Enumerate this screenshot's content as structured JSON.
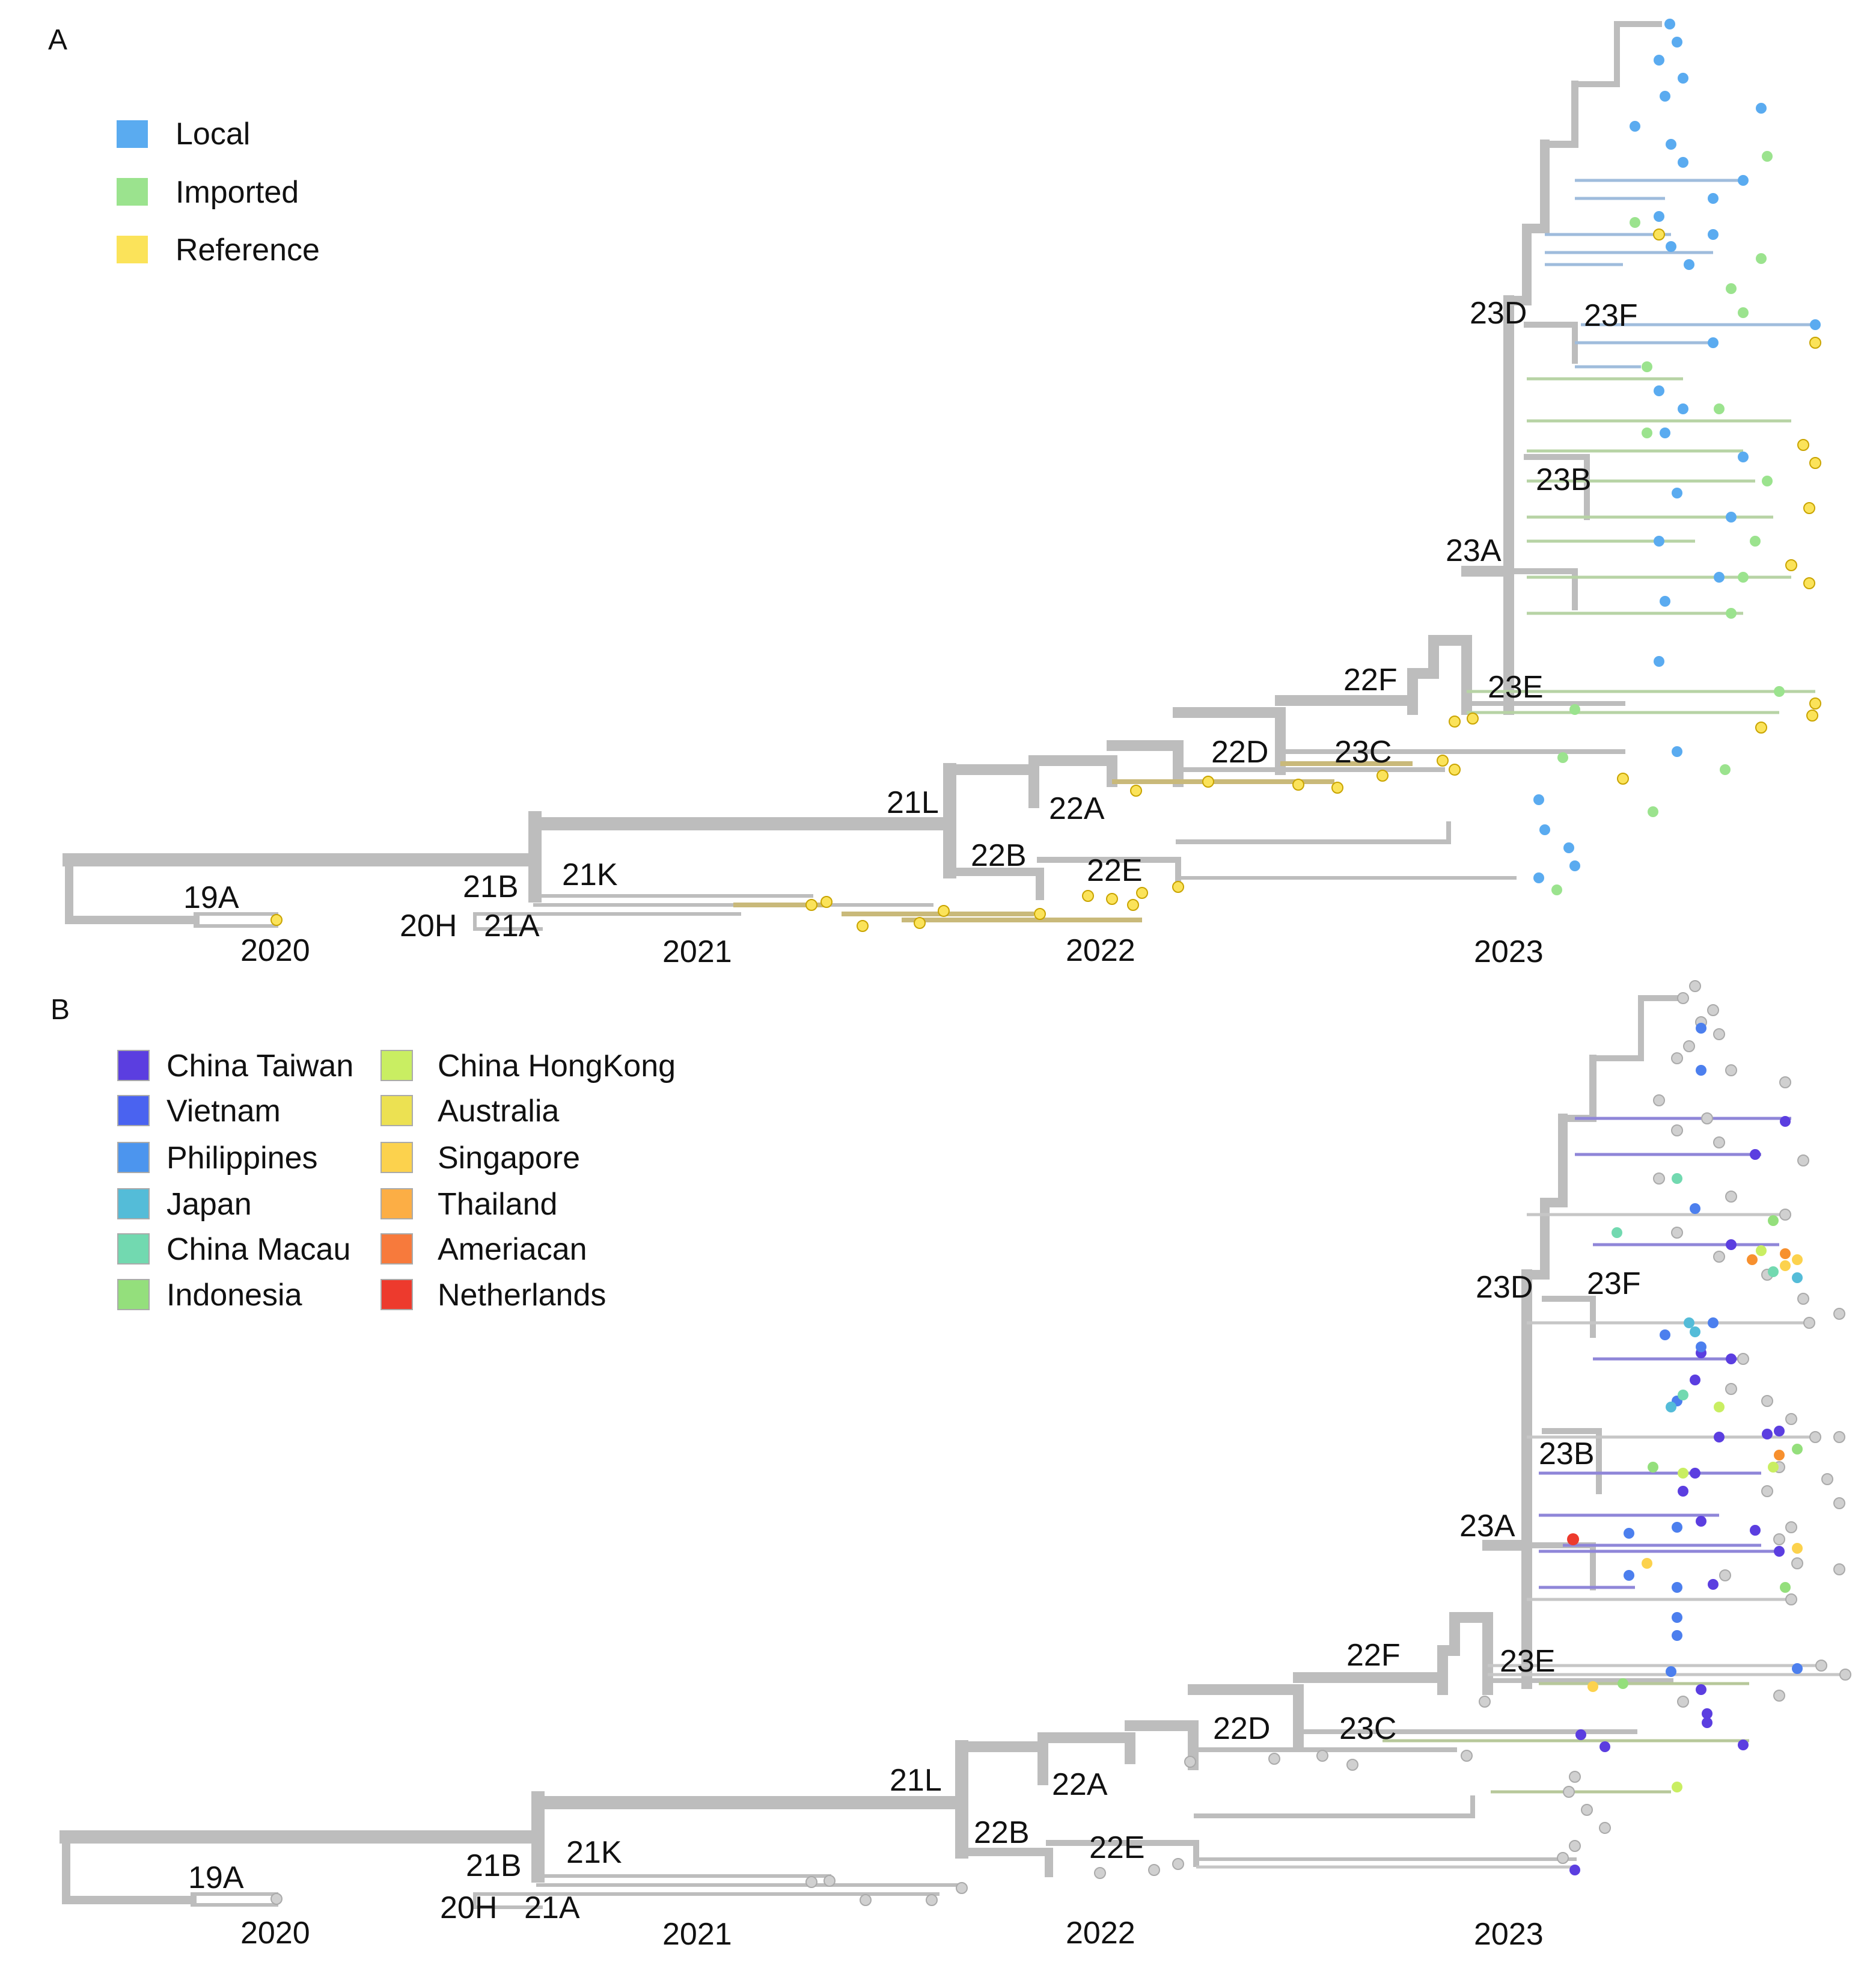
{
  "panel_a": {
    "letter": "A",
    "legend": [
      {
        "label": "Local",
        "color": "#5aabf0"
      },
      {
        "label": "Imported",
        "color": "#9be38e"
      },
      {
        "label": "Reference",
        "color": "#fbe35a"
      }
    ],
    "clades": {
      "c19A": "19A",
      "c20H": "20H",
      "c21A": "21A",
      "c21B": "21B",
      "c21K": "21K",
      "c21L": "21L",
      "c22A": "22A",
      "c22B": "22B",
      "c22D": "22D",
      "c22E": "22E",
      "c22F": "22F",
      "c23A": "23A",
      "c23B": "23B",
      "c23C": "23C",
      "c23D": "23D",
      "c23E": "23E",
      "c23F": "23F"
    },
    "years": {
      "y2020": "2020",
      "y2021": "2021",
      "y2022": "2022",
      "y2023": "2023"
    }
  },
  "panel_b": {
    "letter": "B",
    "legend": [
      {
        "label": "China Taiwan",
        "color": "#5b3ee0"
      },
      {
        "label": "Vietnam",
        "color": "#4a63f0"
      },
      {
        "label": "Philippines",
        "color": "#4c95ee"
      },
      {
        "label": "Japan",
        "color": "#54bcd8"
      },
      {
        "label": "China Macau",
        "color": "#72d9b0"
      },
      {
        "label": "Indonesia",
        "color": "#94df7c"
      },
      {
        "label": "China HongKong",
        "color": "#c9ee62"
      },
      {
        "label": "Australia",
        "color": "#ece152"
      },
      {
        "label": "Singapore",
        "color": "#fcd24d"
      },
      {
        "label": "Thailand",
        "color": "#fcae45"
      },
      {
        "label": "Ameriacan",
        "color": "#f77a3c"
      },
      {
        "label": "Netherlands",
        "color": "#ed3a2d"
      }
    ],
    "clades": {
      "c19A": "19A",
      "c20H": "20H",
      "c21A": "21A",
      "c21B": "21B",
      "c21K": "21K",
      "c21L": "21L",
      "c22A": "22A",
      "c22B": "22B",
      "c22D": "22D",
      "c22E": "22E",
      "c22F": "22F",
      "c23A": "23A",
      "c23B": "23B",
      "c23C": "23C",
      "c23D": "23D",
      "c23E": "23E",
      "c23F": "23F"
    },
    "years": {
      "y2020": "2020",
      "y2021": "2021",
      "y2022": "2022",
      "y2023": "2023"
    }
  },
  "colors": {
    "branch": "#bdbdbd",
    "tip_gray": "#d0d0d0",
    "local": "#5aabf0",
    "imported": "#9be38e",
    "reference": "#fbe35a",
    "reference_branch": "#c9b97a",
    "taiwan_branch": "#8f86d8"
  }
}
